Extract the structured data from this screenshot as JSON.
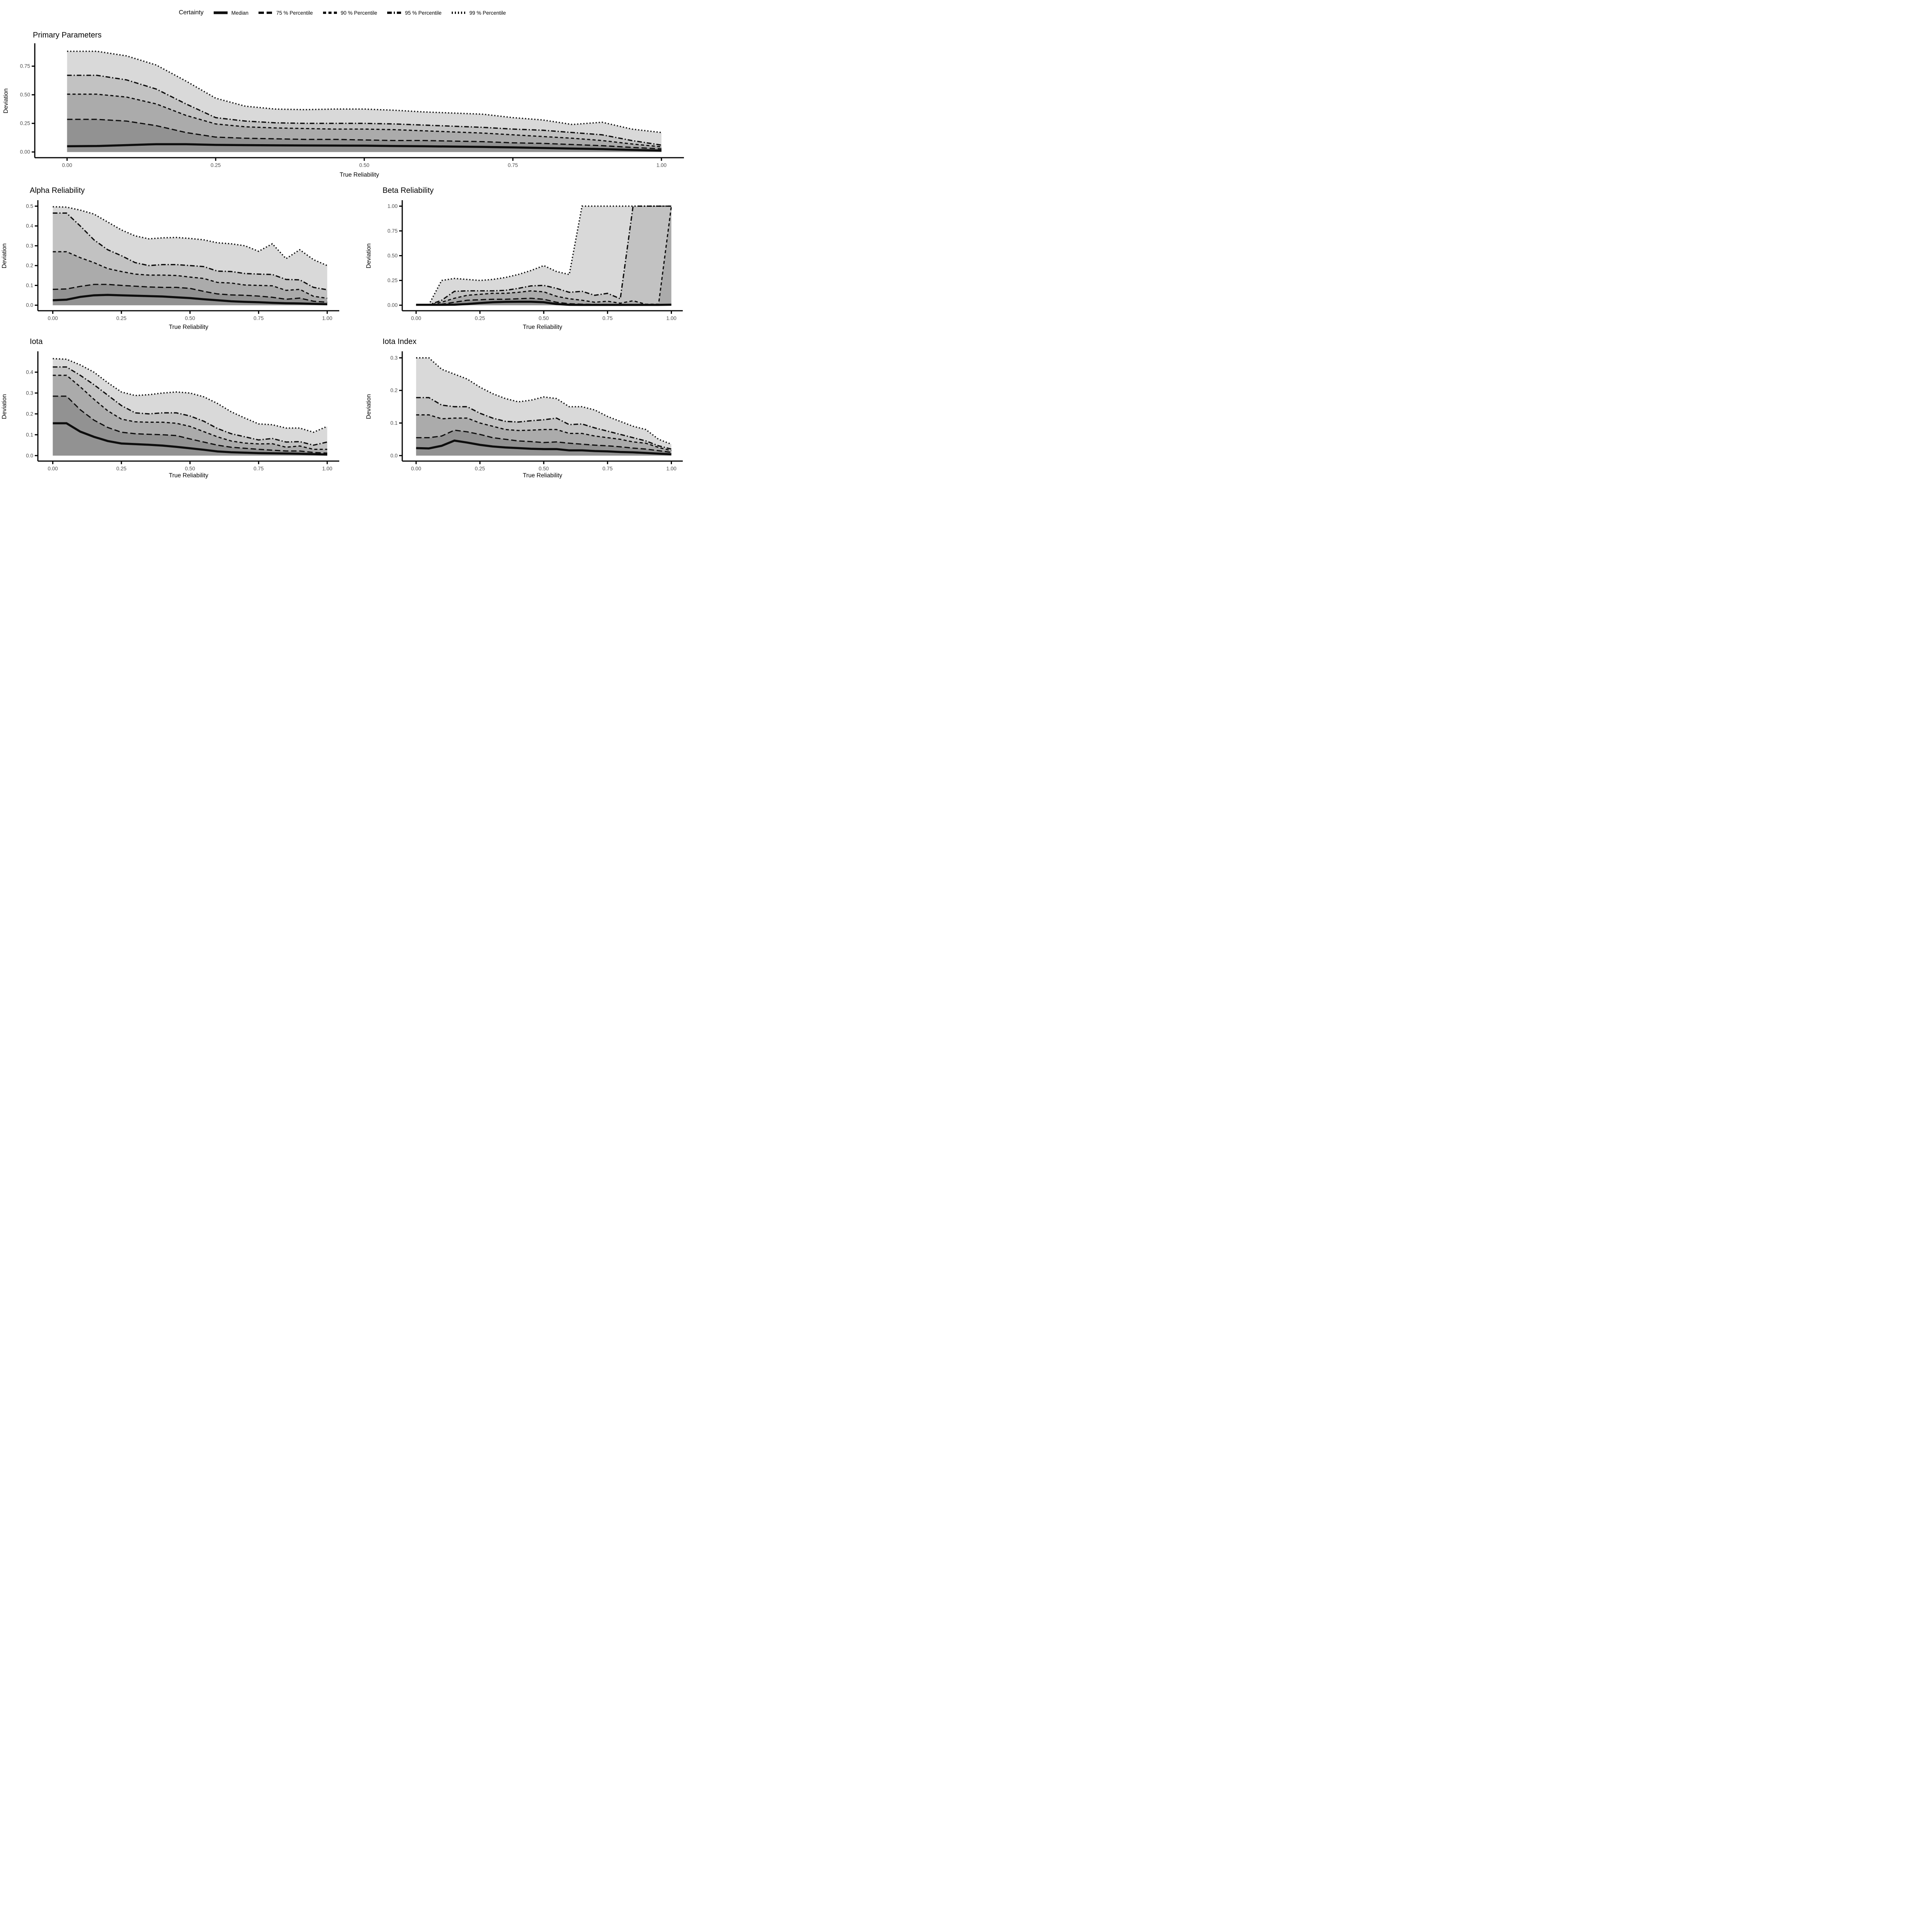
{
  "legend": {
    "title": "Certainty",
    "items": [
      {
        "label": "Median",
        "linetype": "solid"
      },
      {
        "label": "75 % Percentile",
        "linetype": "longdash"
      },
      {
        "label": "90 % Percentile",
        "linetype": "dash"
      },
      {
        "label": "95 % Percentile",
        "linetype": "dashdot"
      },
      {
        "label": "99 % Percentile",
        "linetype": "dotted"
      }
    ]
  },
  "colors": {
    "band_99": "#d9d9d9",
    "band_95": "#c2c2c2",
    "band_90": "#ababab",
    "band_75": "#929292",
    "line": "#0d0d0d",
    "axis": "#000000",
    "tick_label": "#4d4d4d",
    "background": "#ffffff"
  },
  "chart_data": [
    {
      "type": "area",
      "title": "Primary Parameters",
      "xlabel": "True Reliability",
      "ylabel": "Deviation",
      "x": [
        0,
        0.05,
        0.1,
        0.15,
        0.2,
        0.25,
        0.3,
        0.35,
        0.4,
        0.45,
        0.5,
        0.55,
        0.6,
        0.65,
        0.7,
        0.75,
        0.8,
        0.85,
        0.9,
        0.95,
        1
      ],
      "xticks": [
        0,
        0.25,
        0.5,
        0.75,
        1
      ],
      "xtick_labels": [
        "0.00",
        "0.25",
        "0.50",
        "0.75",
        "1.00"
      ],
      "yticks": [
        0,
        0.25,
        0.5,
        0.75
      ],
      "ytick_labels": [
        "0.00",
        "0.25",
        "0.50",
        "0.75"
      ],
      "ylim": [
        0,
        0.95
      ],
      "grid": false,
      "series": [
        {
          "name": "Median",
          "linetype": "solid",
          "band": null,
          "values": [
            0.05,
            0.052,
            0.06,
            0.068,
            0.068,
            0.062,
            0.06,
            0.058,
            0.057,
            0.056,
            0.055,
            0.052,
            0.05,
            0.047,
            0.044,
            0.04,
            0.035,
            0.03,
            0.025,
            0.018,
            0.012
          ]
        },
        {
          "name": "75 % Percentile",
          "linetype": "longdash",
          "band": "band_75",
          "values": [
            0.285,
            0.285,
            0.27,
            0.23,
            0.17,
            0.13,
            0.12,
            0.115,
            0.11,
            0.11,
            0.105,
            0.1,
            0.1,
            0.095,
            0.09,
            0.08,
            0.075,
            0.065,
            0.055,
            0.04,
            0.027
          ]
        },
        {
          "name": "90 % Percentile",
          "linetype": "dash",
          "band": "band_90",
          "values": [
            0.505,
            0.505,
            0.48,
            0.42,
            0.32,
            0.245,
            0.22,
            0.21,
            0.205,
            0.2,
            0.2,
            0.195,
            0.185,
            0.175,
            0.165,
            0.15,
            0.135,
            0.12,
            0.1,
            0.07,
            0.045
          ]
        },
        {
          "name": "95 % Percentile",
          "linetype": "dashdot",
          "band": "band_95",
          "values": [
            0.67,
            0.67,
            0.63,
            0.55,
            0.42,
            0.3,
            0.27,
            0.255,
            0.25,
            0.25,
            0.25,
            0.245,
            0.235,
            0.225,
            0.215,
            0.2,
            0.19,
            0.17,
            0.15,
            0.1,
            0.06
          ]
        },
        {
          "name": "99 % Percentile",
          "linetype": "dotted",
          "band": "band_99",
          "values": [
            0.88,
            0.88,
            0.84,
            0.76,
            0.62,
            0.47,
            0.4,
            0.375,
            0.37,
            0.375,
            0.375,
            0.365,
            0.35,
            0.34,
            0.33,
            0.3,
            0.28,
            0.24,
            0.26,
            0.2,
            0.17
          ]
        }
      ]
    },
    {
      "type": "area",
      "title": "Alpha Reliability",
      "xlabel": "True Reliability",
      "ylabel": "Deviation",
      "x": [
        0,
        0.05,
        0.1,
        0.15,
        0.2,
        0.25,
        0.3,
        0.35,
        0.4,
        0.45,
        0.5,
        0.55,
        0.6,
        0.65,
        0.7,
        0.75,
        0.8,
        0.85,
        0.9,
        0.95,
        1
      ],
      "xticks": [
        0,
        0.25,
        0.5,
        0.75,
        1
      ],
      "xtick_labels": [
        "0.00",
        "0.25",
        "0.50",
        "0.75",
        "1.00"
      ],
      "yticks": [
        0,
        0.1,
        0.2,
        0.3,
        0.4,
        0.5
      ],
      "ytick_labels": [
        "0.0",
        "0.1",
        "0.2",
        "0.3",
        "0.4",
        "0.5"
      ],
      "ylim": [
        0,
        0.53
      ],
      "grid": false,
      "series": [
        {
          "name": "Median",
          "linetype": "solid",
          "band": null,
          "values": [
            0.025,
            0.028,
            0.042,
            0.05,
            0.052,
            0.05,
            0.048,
            0.046,
            0.044,
            0.04,
            0.036,
            0.03,
            0.025,
            0.02,
            0.017,
            0.015,
            0.012,
            0.01,
            0.009,
            0.007,
            0.005
          ]
        },
        {
          "name": "75 % Percentile",
          "linetype": "longdash",
          "band": "band_75",
          "values": [
            0.08,
            0.082,
            0.095,
            0.105,
            0.105,
            0.1,
            0.096,
            0.092,
            0.09,
            0.09,
            0.085,
            0.07,
            0.057,
            0.052,
            0.05,
            0.046,
            0.04,
            0.03,
            0.036,
            0.02,
            0.015
          ]
        },
        {
          "name": "90 % Percentile",
          "linetype": "dash",
          "band": "band_90",
          "values": [
            0.27,
            0.27,
            0.24,
            0.215,
            0.185,
            0.17,
            0.157,
            0.152,
            0.152,
            0.15,
            0.142,
            0.135,
            0.115,
            0.112,
            0.102,
            0.1,
            0.098,
            0.075,
            0.08,
            0.045,
            0.035
          ]
        },
        {
          "name": "95 % Percentile",
          "linetype": "dashdot",
          "band": "band_95",
          "values": [
            0.465,
            0.465,
            0.4,
            0.33,
            0.28,
            0.25,
            0.215,
            0.2,
            0.205,
            0.205,
            0.2,
            0.195,
            0.172,
            0.17,
            0.16,
            0.157,
            0.155,
            0.13,
            0.128,
            0.09,
            0.078
          ]
        },
        {
          "name": "99 % Percentile",
          "linetype": "dotted",
          "band": "band_99",
          "values": [
            0.497,
            0.495,
            0.48,
            0.46,
            0.42,
            0.38,
            0.35,
            0.335,
            0.34,
            0.342,
            0.337,
            0.33,
            0.315,
            0.31,
            0.3,
            0.272,
            0.31,
            0.235,
            0.28,
            0.23,
            0.2
          ]
        }
      ]
    },
    {
      "type": "area",
      "title": "Beta Reliability",
      "xlabel": "True Reliability",
      "ylabel": "Deviation",
      "x": [
        0,
        0.05,
        0.1,
        0.15,
        0.2,
        0.25,
        0.3,
        0.35,
        0.4,
        0.45,
        0.5,
        0.55,
        0.6,
        0.65,
        0.7,
        0.75,
        0.8,
        0.85,
        0.9,
        0.95,
        1
      ],
      "xticks": [
        0,
        0.25,
        0.5,
        0.75,
        1
      ],
      "xtick_labels": [
        "0.00",
        "0.25",
        "0.50",
        "0.75",
        "1.00"
      ],
      "yticks": [
        0,
        0.25,
        0.5,
        0.75,
        1
      ],
      "ytick_labels": [
        "0.00",
        "0.25",
        "0.50",
        "0.75",
        "1.00"
      ],
      "ylim": [
        0,
        1.06
      ],
      "grid": false,
      "series": [
        {
          "name": "Median",
          "linetype": "solid",
          "band": null,
          "values": [
            0.004,
            0.004,
            0.004,
            0.005,
            0.012,
            0.022,
            0.03,
            0.034,
            0.035,
            0.035,
            0.03,
            0.012,
            0.004,
            0.003,
            0.003,
            0.003,
            0.003,
            0.003,
            0.003,
            0.003,
            0.005
          ]
        },
        {
          "name": "75 % Percentile",
          "linetype": "longdash",
          "band": "band_75",
          "values": [
            0.001,
            0.001,
            0.01,
            0.03,
            0.05,
            0.055,
            0.06,
            0.06,
            0.065,
            0.07,
            0.06,
            0.03,
            0.015,
            0.01,
            0.008,
            0.008,
            0.006,
            0.006,
            0.005,
            0.005,
            0.005
          ]
        },
        {
          "name": "90 % Percentile",
          "linetype": "dash",
          "band": "band_90",
          "values": [
            0.002,
            0.002,
            0.03,
            0.07,
            0.1,
            0.11,
            0.12,
            0.12,
            0.13,
            0.145,
            0.135,
            0.09,
            0.065,
            0.05,
            0.03,
            0.04,
            0.02,
            0.045,
            0.01,
            0.01,
            1.0
          ]
        },
        {
          "name": "95 % Percentile",
          "linetype": "dashdot",
          "band": "band_95",
          "values": [
            0.003,
            0.003,
            0.05,
            0.14,
            0.145,
            0.145,
            0.145,
            0.15,
            0.17,
            0.195,
            0.2,
            0.17,
            0.13,
            0.14,
            0.1,
            0.12,
            0.065,
            1.0,
            1.0,
            1.0,
            1.0
          ]
        },
        {
          "name": "99 % Percentile",
          "linetype": "dotted",
          "band": "band_99",
          "values": [
            0.005,
            0.005,
            0.25,
            0.27,
            0.26,
            0.25,
            0.26,
            0.28,
            0.31,
            0.35,
            0.4,
            0.34,
            0.31,
            1.0,
            1.0,
            1.0,
            1.0,
            1.0,
            1.0,
            1.0,
            1.0
          ]
        }
      ]
    },
    {
      "type": "area",
      "title": "Iota",
      "xlabel": "True Reliability",
      "ylabel": "Deviation",
      "x": [
        0,
        0.05,
        0.1,
        0.15,
        0.2,
        0.25,
        0.3,
        0.35,
        0.4,
        0.45,
        0.5,
        0.55,
        0.6,
        0.65,
        0.7,
        0.75,
        0.8,
        0.85,
        0.9,
        0.95,
        1
      ],
      "xticks": [
        0,
        0.25,
        0.5,
        0.75,
        1
      ],
      "xtick_labels": [
        "0.00",
        "0.25",
        "0.50",
        "0.75",
        "1.00"
      ],
      "yticks": [
        0,
        0.1,
        0.2,
        0.3,
        0.4
      ],
      "ytick_labels": [
        "0.0",
        "0.1",
        "0.2",
        "0.3",
        "0.4"
      ],
      "ylim": [
        0,
        0.5
      ],
      "grid": false,
      "series": [
        {
          "name": "Median",
          "linetype": "solid",
          "band": null,
          "values": [
            0.155,
            0.155,
            0.115,
            0.09,
            0.07,
            0.058,
            0.055,
            0.052,
            0.048,
            0.042,
            0.035,
            0.028,
            0.02,
            0.016,
            0.014,
            0.012,
            0.011,
            0.01,
            0.009,
            0.007,
            0.005
          ]
        },
        {
          "name": "75 % Percentile",
          "linetype": "longdash",
          "band": "band_75",
          "values": [
            0.285,
            0.285,
            0.22,
            0.17,
            0.135,
            0.112,
            0.105,
            0.102,
            0.1,
            0.096,
            0.08,
            0.065,
            0.05,
            0.04,
            0.035,
            0.03,
            0.026,
            0.022,
            0.022,
            0.015,
            0.012
          ]
        },
        {
          "name": "90 % Percentile",
          "linetype": "dash",
          "band": "band_90",
          "values": [
            0.385,
            0.385,
            0.33,
            0.27,
            0.215,
            0.175,
            0.162,
            0.16,
            0.16,
            0.155,
            0.14,
            0.115,
            0.09,
            0.07,
            0.06,
            0.056,
            0.057,
            0.04,
            0.046,
            0.03,
            0.03
          ]
        },
        {
          "name": "95 % Percentile",
          "linetype": "dashdot",
          "band": "band_95",
          "values": [
            0.425,
            0.425,
            0.385,
            0.34,
            0.29,
            0.24,
            0.205,
            0.2,
            0.205,
            0.205,
            0.19,
            0.165,
            0.13,
            0.105,
            0.09,
            0.075,
            0.082,
            0.065,
            0.067,
            0.05,
            0.065
          ]
        },
        {
          "name": "99 % Percentile",
          "linetype": "dotted",
          "band": "band_99",
          "values": [
            0.465,
            0.462,
            0.435,
            0.4,
            0.35,
            0.305,
            0.288,
            0.292,
            0.3,
            0.305,
            0.3,
            0.282,
            0.25,
            0.21,
            0.18,
            0.152,
            0.148,
            0.132,
            0.132,
            0.112,
            0.14
          ]
        }
      ]
    },
    {
      "type": "area",
      "title": "Iota Index",
      "xlabel": "True Reliability",
      "ylabel": "Deviation",
      "x": [
        0,
        0.05,
        0.1,
        0.15,
        0.2,
        0.25,
        0.3,
        0.35,
        0.4,
        0.45,
        0.5,
        0.55,
        0.6,
        0.65,
        0.7,
        0.75,
        0.8,
        0.85,
        0.9,
        0.95,
        1
      ],
      "xticks": [
        0,
        0.25,
        0.5,
        0.75,
        1
      ],
      "xtick_labels": [
        "0.00",
        "0.25",
        "0.50",
        "0.75",
        "1.00"
      ],
      "yticks": [
        0,
        0.1,
        0.2,
        0.3
      ],
      "ytick_labels": [
        "0.0",
        "0.1",
        "0.2",
        "0.3"
      ],
      "ylim": [
        0,
        0.32
      ],
      "grid": false,
      "series": [
        {
          "name": "Median",
          "linetype": "solid",
          "band": null,
          "values": [
            0.023,
            0.022,
            0.03,
            0.046,
            0.04,
            0.033,
            0.028,
            0.025,
            0.023,
            0.021,
            0.02,
            0.02,
            0.016,
            0.016,
            0.014,
            0.013,
            0.011,
            0.01,
            0.008,
            0.006,
            0.004
          ]
        },
        {
          "name": "75 % Percentile",
          "linetype": "longdash",
          "band": "band_75",
          "values": [
            0.055,
            0.055,
            0.06,
            0.078,
            0.073,
            0.065,
            0.055,
            0.05,
            0.045,
            0.043,
            0.04,
            0.042,
            0.038,
            0.035,
            0.032,
            0.03,
            0.027,
            0.023,
            0.02,
            0.015,
            0.01
          ]
        },
        {
          "name": "90 % Percentile",
          "linetype": "dash",
          "band": "band_90",
          "values": [
            0.125,
            0.125,
            0.113,
            0.115,
            0.115,
            0.1,
            0.09,
            0.08,
            0.077,
            0.078,
            0.08,
            0.08,
            0.068,
            0.068,
            0.06,
            0.055,
            0.05,
            0.042,
            0.038,
            0.025,
            0.015
          ]
        },
        {
          "name": "95 % Percentile",
          "linetype": "dashdot",
          "band": "band_95",
          "values": [
            0.178,
            0.178,
            0.155,
            0.15,
            0.15,
            0.13,
            0.115,
            0.105,
            0.103,
            0.107,
            0.11,
            0.115,
            0.095,
            0.097,
            0.085,
            0.075,
            0.065,
            0.055,
            0.045,
            0.03,
            0.02
          ]
        },
        {
          "name": "99 % Percentile",
          "linetype": "dotted",
          "band": "band_99",
          "values": [
            0.3,
            0.3,
            0.265,
            0.25,
            0.235,
            0.21,
            0.19,
            0.175,
            0.165,
            0.17,
            0.18,
            0.175,
            0.15,
            0.15,
            0.14,
            0.12,
            0.105,
            0.09,
            0.08,
            0.05,
            0.035
          ]
        }
      ]
    }
  ]
}
